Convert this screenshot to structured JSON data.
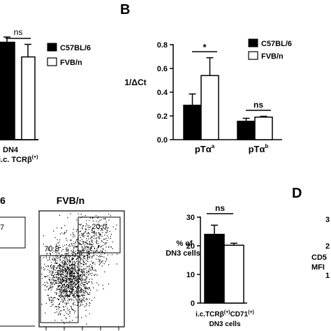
{
  "panels": {
    "B": "B",
    "D": "D"
  },
  "legend": {
    "c57": "C57BL/6",
    "fvb": "FVB/n"
  },
  "colors": {
    "c57": "#000000",
    "fvb": "#ffffff",
    "scatter": "#000000"
  },
  "panel_a_top": {
    "sig": "ns",
    "cat_line1": "DN4",
    "cat_line2": "i.c. TCR",
    "cat_beta": "β",
    "cat_sup": "(+)"
  },
  "panel_b": {
    "ylabel": "1/ΔCt",
    "sig_a": "*",
    "sig_b": "ns",
    "cat_a_base": "pTα",
    "cat_a_sup": "a",
    "cat_b_base": "pTα",
    "cat_b_sup": "b"
  },
  "panel_c": {
    "c57_title_fragment": "6",
    "fvb_title": "FVB/n",
    "c57_gate_fragment": "7",
    "fvb_gate_upper": "20.0",
    "fvb_gate_lower": "70.8",
    "bar_ylabel_1": "% of",
    "bar_ylabel_2": "DN3 cells",
    "bar_sig": "ns",
    "cat_line1_a": "i.c.TCR",
    "cat_beta": "β",
    "cat_sup1": "(+)",
    "cat_line1_b": "CD71",
    "cat_sup2": "(+)",
    "cat_line2": "DN3 cells"
  },
  "panel_d": {
    "frag_1": "3",
    "frag_2": "2",
    "frag_3": "CD5",
    "frag_4": "MFI",
    "frag_5": "1"
  },
  "chart_data": [
    {
      "type": "bar",
      "id": "panel-b",
      "ylabel": "1/ΔCt",
      "ylim": [
        0,
        0.8
      ],
      "yticks": [
        "0.0",
        "0.2",
        "0.4",
        "0.6",
        "0.8"
      ],
      "categories": [
        "pTαa",
        "pTαb"
      ],
      "series": [
        {
          "name": "C57BL/6",
          "values": [
            0.29,
            0.155
          ],
          "errors": [
            0.095,
            0.025
          ]
        },
        {
          "name": "FVB/n",
          "values": [
            0.54,
            0.19
          ],
          "errors": [
            0.15,
            0.007
          ]
        }
      ]
    },
    {
      "type": "bar",
      "id": "panel-c-bar",
      "ylabel": "% of DN3 cells",
      "ylim": [
        0,
        30
      ],
      "yticks": [
        "0",
        "10",
        "20",
        "30"
      ],
      "categories": [
        "i.c.TCRβ(+)CD71(+) DN3 cells"
      ],
      "series": [
        {
          "name": "C57BL/6",
          "values": [
            24
          ],
          "errors": [
            3.2
          ]
        },
        {
          "name": "FVB/n",
          "values": [
            20.2
          ],
          "errors": [
            0.7
          ]
        }
      ]
    },
    {
      "type": "bar",
      "id": "panel-a-partial",
      "categories": [
        "DN4 i.c. TCRβ(+)"
      ],
      "series": [
        {
          "name": "C57BL/6",
          "values": [
            0.93
          ],
          "errors": [
            0.05
          ]
        },
        {
          "name": "FVB/n",
          "values": [
            0.79
          ],
          "errors": [
            0.12
          ]
        }
      ]
    }
  ]
}
